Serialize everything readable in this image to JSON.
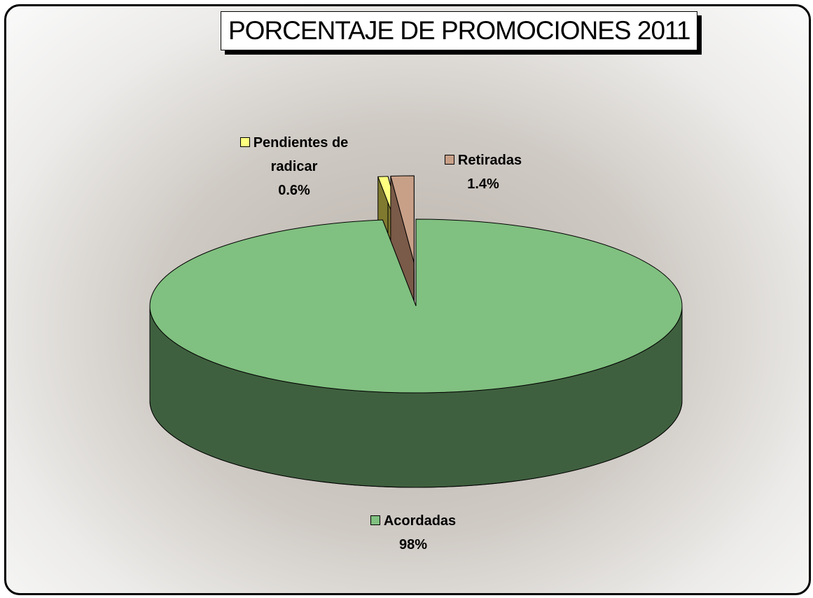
{
  "chart_data": {
    "type": "pie3d",
    "title": "PORCENTAJE DE PROMOCIONES 2011",
    "categories": [
      "Acordadas",
      "Pendientes de radicar",
      "Retiradas"
    ],
    "values": [
      98,
      0.6,
      1.4
    ],
    "value_labels": [
      "98%",
      "0.6%",
      "1.4%"
    ],
    "colors": [
      "#80c080",
      "#ffff80",
      "#c8a088"
    ],
    "side_colors": [
      "#3f603f",
      "#807a30",
      "#7a5a48"
    ],
    "exploded": [
      false,
      true,
      true
    ]
  }
}
